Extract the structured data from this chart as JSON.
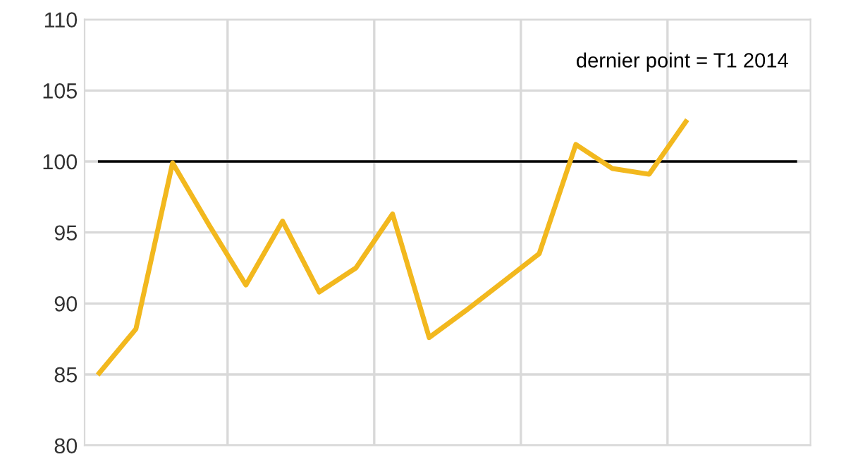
{
  "chart_data": {
    "type": "line",
    "categories": [
      null,
      null,
      null,
      null,
      null,
      null,
      null,
      null,
      null,
      null,
      null,
      null,
      null,
      null,
      null,
      null,
      null,
      null,
      null,
      null
    ],
    "series": [
      {
        "color": "#f2b81e",
        "values": [
          85.1,
          88.2,
          99.9,
          95.5,
          91.3,
          95.8,
          90.8,
          92.5,
          96.3,
          87.6,
          89.5,
          91.5,
          93.5,
          101.2,
          99.5,
          99.1,
          102.8,
          null,
          null,
          null
        ]
      }
    ],
    "ylim": [
      80,
      110
    ],
    "yticks": [
      80,
      85,
      90,
      95,
      100,
      105,
      110
    ],
    "grid": true,
    "tick_labels": "y",
    "ref_lines": [
      {
        "axis": "y",
        "value": 100,
        "color": "#000000"
      }
    ],
    "annotations": [
      "dernier point = T1 2014"
    ]
  }
}
